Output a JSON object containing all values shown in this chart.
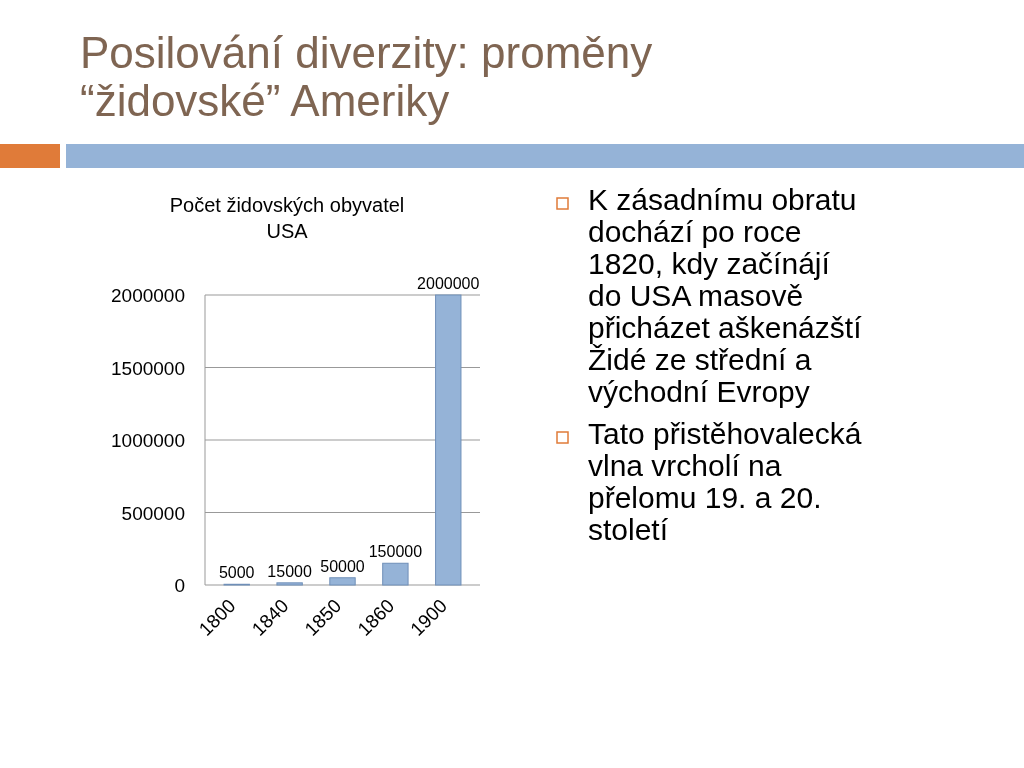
{
  "chart_data": {
    "type": "bar",
    "title": "Posilování diverzity: proměny “židovské” Ameriky",
    "subtitle": "Počet židovských obyvatel USA",
    "categories": [
      "1800",
      "1840",
      "1850",
      "1860",
      "1900"
    ],
    "values": [
      5000,
      15000,
      50000,
      150000,
      2000000
    ],
    "color": "#95b3d7",
    "ylim": [
      0,
      2000000
    ],
    "yticks": [
      0,
      500000,
      1000000,
      1500000,
      2000000
    ],
    "grid": "y",
    "data_labels": true,
    "annotations": [
      "K zásadnímu obratu dochází po roce 1820, kdy začínájí do USA masově přicházet aškenázští Židé ze střední a východní Evropy",
      "Tato přistěhovalecká vlna vrcholí na přelomu 19. a 20. století"
    ]
  }
}
